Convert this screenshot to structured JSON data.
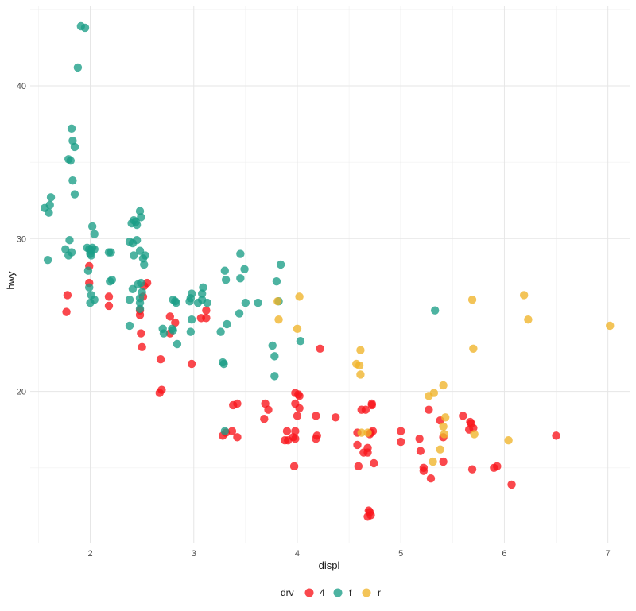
{
  "chart_data": {
    "type": "scatter",
    "title": "",
    "xlabel": "displ",
    "ylabel": "hwy",
    "xlim": [
      1.42,
      7.21
    ],
    "ylim": [
      10.1,
      45.2
    ],
    "x_ticks": [
      2,
      3,
      4,
      5,
      6,
      7
    ],
    "y_ticks": [
      20,
      30,
      40
    ],
    "grid": true,
    "legend": {
      "title": "drv",
      "position": "bottom",
      "entries": [
        {
          "label": "4",
          "color": "#f8151b"
        },
        {
          "label": "f",
          "color": "#1b9e87"
        },
        {
          "label": "r",
          "color": "#f0b429"
        }
      ]
    },
    "series": [
      {
        "name": "4",
        "color": "#f8151b",
        "points": [
          [
            1.78,
            26.3
          ],
          [
            1.77,
            25.2
          ],
          [
            1.99,
            28.2
          ],
          [
            1.99,
            27.1
          ],
          [
            2.18,
            26.2
          ],
          [
            2.18,
            25.6
          ],
          [
            2.48,
            25.0
          ],
          [
            2.48,
            25.3
          ],
          [
            2.52,
            26.9
          ],
          [
            2.55,
            27.1
          ],
          [
            2.51,
            26.2
          ],
          [
            2.49,
            23.8
          ],
          [
            2.5,
            22.9
          ],
          [
            2.77,
            24.9
          ],
          [
            2.82,
            24.5
          ],
          [
            2.77,
            23.8
          ],
          [
            2.68,
            22.1
          ],
          [
            2.69,
            20.1
          ],
          [
            2.67,
            19.9
          ],
          [
            2.98,
            21.8
          ],
          [
            3.07,
            24.8
          ],
          [
            3.12,
            24.8
          ],
          [
            3.12,
            25.3
          ],
          [
            3.28,
            17.1
          ],
          [
            3.31,
            17.3
          ],
          [
            3.37,
            17.4
          ],
          [
            3.42,
            17.0
          ],
          [
            3.38,
            19.1
          ],
          [
            3.42,
            19.2
          ],
          [
            3.68,
            18.2
          ],
          [
            3.69,
            19.2
          ],
          [
            3.72,
            18.8
          ],
          [
            3.9,
            17.4
          ],
          [
            3.88,
            16.8
          ],
          [
            3.91,
            16.8
          ],
          [
            3.97,
            15.1
          ],
          [
            3.96,
            17.0
          ],
          [
            3.98,
            16.9
          ],
          [
            3.98,
            17.4
          ],
          [
            4.0,
            18.4
          ],
          [
            4.01,
            19.8
          ],
          [
            3.98,
            19.9
          ],
          [
            4.02,
            19.7
          ],
          [
            3.98,
            19.2
          ],
          [
            4.02,
            18.9
          ],
          [
            4.18,
            18.4
          ],
          [
            4.19,
            17.1
          ],
          [
            4.18,
            16.9
          ],
          [
            4.22,
            22.8
          ],
          [
            4.37,
            18.3
          ],
          [
            4.58,
            17.3
          ],
          [
            4.58,
            16.5
          ],
          [
            4.59,
            15.1
          ],
          [
            4.62,
            18.8
          ],
          [
            4.64,
            16.0
          ],
          [
            4.68,
            16.3
          ],
          [
            4.68,
            16.0
          ],
          [
            4.7,
            17.2
          ],
          [
            4.71,
            17.3
          ],
          [
            4.73,
            17.4
          ],
          [
            4.66,
            18.8
          ],
          [
            4.72,
            19.1
          ],
          [
            4.72,
            19.2
          ],
          [
            4.74,
            15.3
          ],
          [
            4.7,
            12.1
          ],
          [
            4.68,
            11.8
          ],
          [
            4.71,
            11.9
          ],
          [
            4.69,
            12.2
          ],
          [
            5.0,
            17.4
          ],
          [
            5.0,
            16.7
          ],
          [
            5.18,
            16.9
          ],
          [
            5.19,
            16.1
          ],
          [
            5.22,
            14.8
          ],
          [
            5.22,
            15.0
          ],
          [
            5.27,
            18.8
          ],
          [
            5.29,
            14.3
          ],
          [
            5.38,
            18.1
          ],
          [
            5.41,
            17.0
          ],
          [
            5.41,
            15.4
          ],
          [
            5.6,
            18.4
          ],
          [
            5.67,
            18.0
          ],
          [
            5.66,
            17.5
          ],
          [
            5.7,
            17.6
          ],
          [
            5.68,
            17.9
          ],
          [
            5.69,
            14.9
          ],
          [
            5.9,
            15.0
          ],
          [
            5.93,
            15.1
          ],
          [
            6.07,
            13.9
          ],
          [
            6.5,
            17.1
          ]
        ]
      },
      {
        "name": "f",
        "color": "#1b9e87",
        "points": [
          [
            1.56,
            32.0
          ],
          [
            1.6,
            31.7
          ],
          [
            1.61,
            32.2
          ],
          [
            1.62,
            32.7
          ],
          [
            1.59,
            28.6
          ],
          [
            1.76,
            29.3
          ],
          [
            1.8,
            29.9
          ],
          [
            1.79,
            28.9
          ],
          [
            1.82,
            29.1
          ],
          [
            1.81,
            35.1
          ],
          [
            1.79,
            35.2
          ],
          [
            1.83,
            33.8
          ],
          [
            1.85,
            32.9
          ],
          [
            1.82,
            37.2
          ],
          [
            1.83,
            36.4
          ],
          [
            1.85,
            36.0
          ],
          [
            1.88,
            41.2
          ],
          [
            1.91,
            43.9
          ],
          [
            1.95,
            43.8
          ],
          [
            1.97,
            29.4
          ],
          [
            1.99,
            29.3
          ],
          [
            2.0,
            29.0
          ],
          [
            2.01,
            28.9
          ],
          [
            2.02,
            29.4
          ],
          [
            2.04,
            29.3
          ],
          [
            2.01,
            29.2
          ],
          [
            2.02,
            30.8
          ],
          [
            2.04,
            30.3
          ],
          [
            1.98,
            27.9
          ],
          [
            1.99,
            26.8
          ],
          [
            2.01,
            26.3
          ],
          [
            2.0,
            25.8
          ],
          [
            2.04,
            26.0
          ],
          [
            2.18,
            29.1
          ],
          [
            2.2,
            29.1
          ],
          [
            2.19,
            27.2
          ],
          [
            2.21,
            27.3
          ],
          [
            2.38,
            29.8
          ],
          [
            2.41,
            29.7
          ],
          [
            2.4,
            31.0
          ],
          [
            2.42,
            31.2
          ],
          [
            2.44,
            31.1
          ],
          [
            2.45,
            30.9
          ],
          [
            2.48,
            31.8
          ],
          [
            2.49,
            31.4
          ],
          [
            2.45,
            29.9
          ],
          [
            2.42,
            28.9
          ],
          [
            2.48,
            29.2
          ],
          [
            2.51,
            28.7
          ],
          [
            2.53,
            28.9
          ],
          [
            2.52,
            28.3
          ],
          [
            2.46,
            27.0
          ],
          [
            2.49,
            27.1
          ],
          [
            2.48,
            25.8
          ],
          [
            2.48,
            25.4
          ],
          [
            2.38,
            26.0
          ],
          [
            2.41,
            26.7
          ],
          [
            2.38,
            24.3
          ],
          [
            2.5,
            26.5
          ],
          [
            2.48,
            26.1
          ],
          [
            2.7,
            24.1
          ],
          [
            2.71,
            23.8
          ],
          [
            2.79,
            24.1
          ],
          [
            2.8,
            24.0
          ],
          [
            2.8,
            26.0
          ],
          [
            2.83,
            25.8
          ],
          [
            2.82,
            25.9
          ],
          [
            2.84,
            23.1
          ],
          [
            2.96,
            25.9
          ],
          [
            2.98,
            26.4
          ],
          [
            2.97,
            26.1
          ],
          [
            2.98,
            24.7
          ],
          [
            2.97,
            23.9
          ],
          [
            3.04,
            25.8
          ],
          [
            3.08,
            26.0
          ],
          [
            3.08,
            26.4
          ],
          [
            3.09,
            26.8
          ],
          [
            3.13,
            25.8
          ],
          [
            3.26,
            23.9
          ],
          [
            3.28,
            21.9
          ],
          [
            3.29,
            21.8
          ],
          [
            3.3,
            27.9
          ],
          [
            3.31,
            27.3
          ],
          [
            3.32,
            24.4
          ],
          [
            3.3,
            17.4
          ],
          [
            3.45,
            29.0
          ],
          [
            3.45,
            27.4
          ],
          [
            3.49,
            28.0
          ],
          [
            3.5,
            25.8
          ],
          [
            3.44,
            25.1
          ],
          [
            3.62,
            25.8
          ],
          [
            3.76,
            23.0
          ],
          [
            3.78,
            22.3
          ],
          [
            3.78,
            21.0
          ],
          [
            3.8,
            27.2
          ],
          [
            3.84,
            28.3
          ],
          [
            3.82,
            25.9
          ],
          [
            4.03,
            23.3
          ],
          [
            5.33,
            25.3
          ]
        ]
      },
      {
        "name": "r",
        "color": "#f0b429",
        "points": [
          [
            3.81,
            25.9
          ],
          [
            3.82,
            24.7
          ],
          [
            4.0,
            24.1
          ],
          [
            4.02,
            26.2
          ],
          [
            4.57,
            21.8
          ],
          [
            4.6,
            21.7
          ],
          [
            4.61,
            21.1
          ],
          [
            4.61,
            22.7
          ],
          [
            4.62,
            17.3
          ],
          [
            4.68,
            17.3
          ],
          [
            5.27,
            19.7
          ],
          [
            5.32,
            19.9
          ],
          [
            5.41,
            20.4
          ],
          [
            5.43,
            18.3
          ],
          [
            5.41,
            17.7
          ],
          [
            5.42,
            17.2
          ],
          [
            5.31,
            15.4
          ],
          [
            5.38,
            16.2
          ],
          [
            5.69,
            26.0
          ],
          [
            5.7,
            22.8
          ],
          [
            5.71,
            17.2
          ],
          [
            6.04,
            16.8
          ],
          [
            6.19,
            26.3
          ],
          [
            6.23,
            24.7
          ],
          [
            7.02,
            24.3
          ]
        ]
      }
    ]
  }
}
